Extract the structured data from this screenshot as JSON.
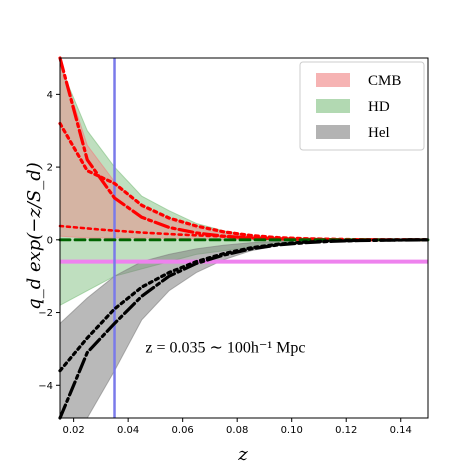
{
  "chart_data": {
    "type": "line",
    "xlabel": "z",
    "ylabel": "q_d exp(−z/S_d)",
    "xlim": [
      0.015,
      0.15
    ],
    "ylim": [
      -4.9,
      5.0
    ],
    "x_ticks": [
      0.02,
      0.04,
      0.06,
      0.08,
      0.1,
      0.12,
      0.14
    ],
    "x_tick_labels": [
      "0.02",
      "0.04",
      "0.06",
      "0.08",
      "0.10",
      "0.12",
      "0.14"
    ],
    "y_ticks": [
      -4,
      -2,
      0,
      2,
      4
    ],
    "y_tick_labels": [
      "−4",
      "−2",
      "0",
      "2",
      "4"
    ],
    "grid": false,
    "legend_position": "top-right",
    "legend": [
      {
        "label": "CMB",
        "color": "#f08080"
      },
      {
        "label": "HD",
        "color": "#7fbf7f"
      },
      {
        "label": "Hel",
        "color": "#808080"
      }
    ],
    "bands": [
      {
        "name": "HD",
        "color": "#7fbf7f",
        "opacity": 0.5,
        "x": [
          0.015,
          0.025,
          0.035,
          0.045,
          0.055,
          0.065,
          0.075,
          0.085,
          0.095,
          0.105,
          0.115,
          0.125,
          0.135,
          0.15
        ],
        "upper": [
          4.8,
          3.0,
          2.0,
          1.2,
          0.8,
          0.45,
          0.25,
          0.12,
          0.07,
          0.04,
          0.02,
          0.01,
          0.0,
          0.0
        ],
        "lower": [
          -1.8,
          -1.4,
          -1.0,
          -0.8,
          -0.6,
          -0.4,
          -0.3,
          -0.2,
          -0.12,
          -0.07,
          -0.04,
          -0.02,
          -0.01,
          0.0
        ]
      },
      {
        "name": "CMB",
        "color": "#f08080",
        "opacity": 0.45,
        "x": [
          0.015,
          0.025,
          0.035,
          0.045,
          0.055,
          0.065,
          0.075,
          0.085,
          0.095,
          0.105,
          0.115,
          0.125,
          0.135,
          0.15
        ],
        "upper": [
          4.9,
          2.6,
          1.6,
          0.9,
          0.55,
          0.32,
          0.18,
          0.1,
          0.05,
          0.03,
          0.015,
          0.005,
          0.0,
          0.0
        ],
        "lower": [
          0.1,
          0.05,
          0.05,
          0.05,
          0.04,
          0.03,
          0.02,
          0.01,
          0.0,
          0.0,
          0.0,
          0.0,
          0.0,
          0.0
        ]
      },
      {
        "name": "Hel",
        "color": "#808080",
        "opacity": 0.55,
        "x": [
          0.015,
          0.025,
          0.035,
          0.045,
          0.055,
          0.065,
          0.075,
          0.085,
          0.095,
          0.105,
          0.115,
          0.125,
          0.135,
          0.15
        ],
        "upper": [
          -2.3,
          -1.6,
          -1.0,
          -0.6,
          -0.4,
          -0.25,
          -0.15,
          -0.08,
          -0.04,
          -0.02,
          -0.01,
          0.0,
          0.0,
          0.0
        ],
        "lower": [
          -4.9,
          -4.9,
          -3.6,
          -2.2,
          -1.4,
          -0.9,
          -0.55,
          -0.3,
          -0.16,
          -0.09,
          -0.05,
          -0.02,
          -0.01,
          0.0
        ]
      }
    ],
    "series": [
      {
        "color": "#ff0000",
        "dash": "14,4,3,4",
        "width": 3.2,
        "x": [
          0.015,
          0.025,
          0.035,
          0.045,
          0.055,
          0.065,
          0.075,
          0.085,
          0.095,
          0.105,
          0.115,
          0.125,
          0.135,
          0.15
        ],
        "y": [
          5.0,
          2.2,
          1.15,
          0.62,
          0.34,
          0.19,
          0.1,
          0.05,
          0.025,
          0.012,
          0.005,
          0.002,
          0.0,
          0.0
        ]
      },
      {
        "color": "#ff0000",
        "dash": "3,4",
        "width": 3.2,
        "x": [
          0.015,
          0.025,
          0.035,
          0.045,
          0.055,
          0.065,
          0.075,
          0.085,
          0.095,
          0.105,
          0.115,
          0.125,
          0.135,
          0.15
        ],
        "y": [
          3.2,
          1.9,
          1.55,
          0.95,
          0.6,
          0.38,
          0.22,
          0.12,
          0.06,
          0.03,
          0.015,
          0.005,
          0.0,
          0.0
        ]
      },
      {
        "color": "#ff0000",
        "dash": "3,4",
        "width": 2.6,
        "x": [
          0.015,
          0.03,
          0.045,
          0.06,
          0.075,
          0.09,
          0.105,
          0.12,
          0.135,
          0.15
        ],
        "y": [
          0.38,
          0.28,
          0.2,
          0.14,
          0.09,
          0.05,
          0.03,
          0.015,
          0.005,
          0.0
        ]
      },
      {
        "color": "#006400",
        "dash": "10,5",
        "width": 2.8,
        "x": [
          0.015,
          0.05,
          0.08,
          0.11,
          0.15
        ],
        "y": [
          0.0,
          0.0,
          0.0,
          0.0,
          0.0
        ]
      },
      {
        "color": "#000000",
        "dash": "14,4,3,4",
        "width": 3.2,
        "x": [
          0.015,
          0.025,
          0.035,
          0.045,
          0.055,
          0.065,
          0.075,
          0.085,
          0.095,
          0.105,
          0.115,
          0.125,
          0.135,
          0.15
        ],
        "y": [
          -4.9,
          -3.1,
          -2.3,
          -1.55,
          -1.0,
          -0.65,
          -0.42,
          -0.25,
          -0.14,
          -0.08,
          -0.04,
          -0.02,
          -0.01,
          0.0
        ]
      },
      {
        "color": "#000000",
        "dash": "3,4",
        "width": 3.2,
        "x": [
          0.015,
          0.025,
          0.035,
          0.045,
          0.055,
          0.065,
          0.075,
          0.085,
          0.095,
          0.105,
          0.115,
          0.125,
          0.135,
          0.15
        ],
        "y": [
          -3.6,
          -2.7,
          -1.9,
          -1.3,
          -0.9,
          -0.6,
          -0.38,
          -0.22,
          -0.12,
          -0.06,
          -0.03,
          -0.015,
          -0.005,
          0.0
        ]
      }
    ],
    "hlines": [
      {
        "y": -0.6,
        "color": "#ee82ee",
        "width": 4
      }
    ],
    "vlines": [
      {
        "x": 0.035,
        "color": "#7a7aea",
        "width": 2.5
      }
    ],
    "annotation": {
      "text": "z = 0.035 ∼ 100h⁻¹ Mpc",
      "x": 0.072,
      "y": -3.1
    }
  }
}
